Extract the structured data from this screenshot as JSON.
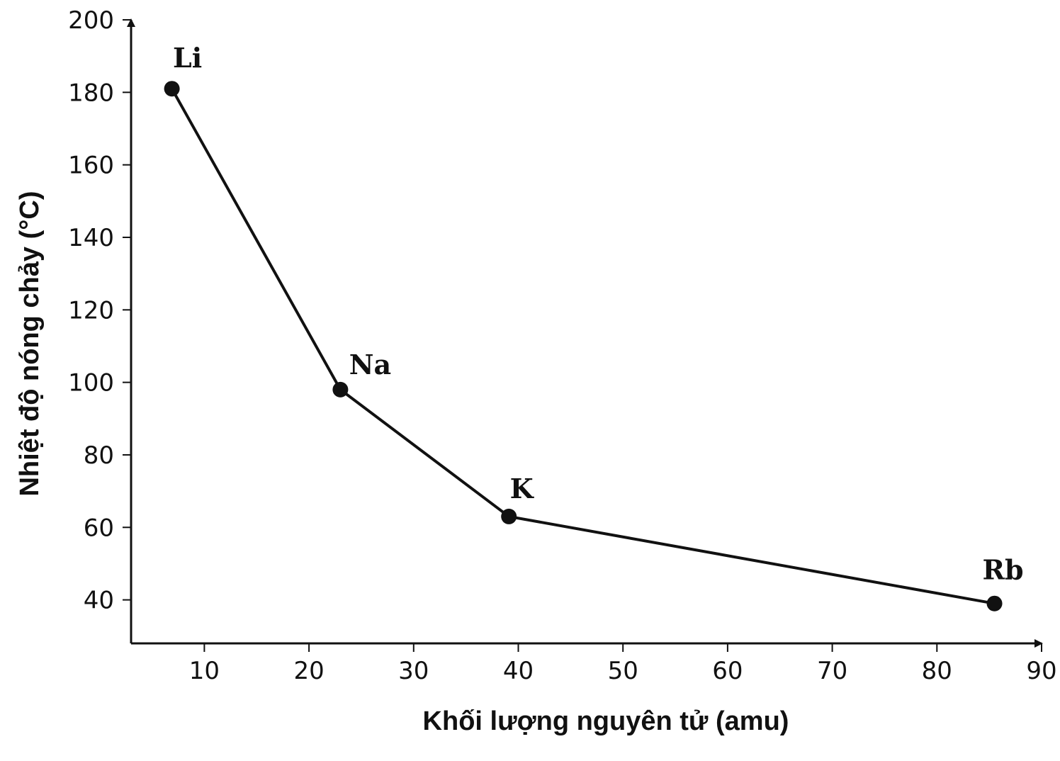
{
  "chart_data": {
    "type": "line",
    "xlabel": "Khối lượng nguyên tử (amu)",
    "ylabel": "Nhiệt độ nóng chảy (°C)",
    "xlim": [
      3,
      90
    ],
    "ylim": [
      28,
      200
    ],
    "x_ticks": [
      10,
      20,
      30,
      40,
      50,
      60,
      70,
      80,
      90
    ],
    "y_ticks": [
      40,
      60,
      80,
      100,
      120,
      140,
      160,
      180,
      200
    ],
    "grid": false,
    "series": [
      {
        "points": [
          {
            "label": "Li",
            "x": 6.9,
            "y": 181
          },
          {
            "label": "Na",
            "x": 23.0,
            "y": 98
          },
          {
            "label": "K",
            "x": 39.1,
            "y": 63
          },
          {
            "label": "Rb",
            "x": 85.5,
            "y": 39
          }
        ]
      }
    ],
    "colors": {
      "line": "#111111",
      "marker": "#111111",
      "axis": "#111111"
    }
  }
}
